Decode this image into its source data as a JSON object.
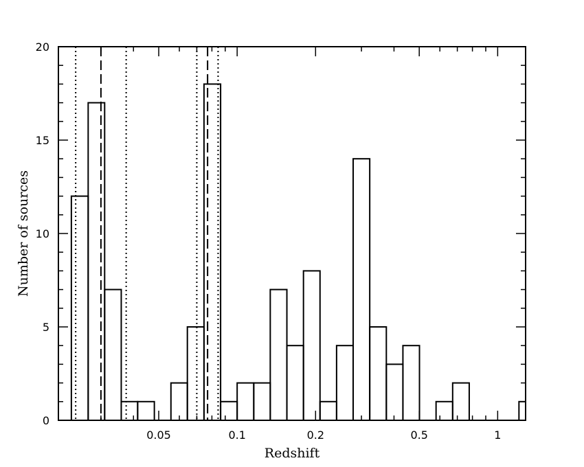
{
  "chart_data": {
    "type": "bar",
    "title": "",
    "xlabel": "Redshift",
    "ylabel": "Number of sources",
    "x_scale": "log",
    "xlim": [
      0.0206,
      1.28
    ],
    "ylim": [
      0,
      20
    ],
    "grid": false,
    "x_ticks": [
      {
        "value": 0.05,
        "label": "0.05"
      },
      {
        "value": 0.1,
        "label": "0.1"
      },
      {
        "value": 0.2,
        "label": "0.2"
      },
      {
        "value": 0.5,
        "label": "0.5"
      },
      {
        "value": 1,
        "label": "1"
      }
    ],
    "y_ticks": [
      {
        "value": 0,
        "label": "0"
      },
      {
        "value": 5,
        "label": "5"
      },
      {
        "value": 10,
        "label": "10"
      },
      {
        "value": 15,
        "label": "15"
      },
      {
        "value": 20,
        "label": "20"
      }
    ],
    "bins": [
      {
        "x0": 0.0231,
        "x1": 0.0268,
        "count": 12
      },
      {
        "x0": 0.0268,
        "x1": 0.031,
        "count": 17
      },
      {
        "x0": 0.031,
        "x1": 0.0359,
        "count": 7
      },
      {
        "x0": 0.0359,
        "x1": 0.0415,
        "count": 1
      },
      {
        "x0": 0.0415,
        "x1": 0.0481,
        "count": 1
      },
      {
        "x0": 0.0481,
        "x1": 0.0557,
        "count": 0
      },
      {
        "x0": 0.0557,
        "x1": 0.0644,
        "count": 2
      },
      {
        "x0": 0.0644,
        "x1": 0.0746,
        "count": 5
      },
      {
        "x0": 0.0746,
        "x1": 0.0864,
        "count": 18
      },
      {
        "x0": 0.0864,
        "x1": 0.1,
        "count": 1
      },
      {
        "x0": 0.1,
        "x1": 0.1158,
        "count": 2
      },
      {
        "x0": 0.1158,
        "x1": 0.134,
        "count": 2
      },
      {
        "x0": 0.134,
        "x1": 0.1552,
        "count": 7
      },
      {
        "x0": 0.1552,
        "x1": 0.1797,
        "count": 4
      },
      {
        "x0": 0.1797,
        "x1": 0.208,
        "count": 8
      },
      {
        "x0": 0.208,
        "x1": 0.2408,
        "count": 1
      },
      {
        "x0": 0.2408,
        "x1": 0.2788,
        "count": 4
      },
      {
        "x0": 0.2788,
        "x1": 0.3228,
        "count": 14
      },
      {
        "x0": 0.3228,
        "x1": 0.3738,
        "count": 5
      },
      {
        "x0": 0.3738,
        "x1": 0.4328,
        "count": 3
      },
      {
        "x0": 0.4328,
        "x1": 0.501,
        "count": 4
      },
      {
        "x0": 0.501,
        "x1": 0.5801,
        "count": 0
      },
      {
        "x0": 0.5801,
        "x1": 0.6717,
        "count": 1
      },
      {
        "x0": 0.6717,
        "x1": 0.7777,
        "count": 2
      },
      {
        "x0": 0.7777,
        "x1": 0.9004,
        "count": 0
      },
      {
        "x0": 0.9004,
        "x1": 1.0425,
        "count": 0
      },
      {
        "x0": 1.0425,
        "x1": 1.207,
        "count": 0
      },
      {
        "x0": 1.207,
        "x1": 1.28,
        "count": 1
      }
    ],
    "reference_lines": [
      {
        "x": 0.024,
        "style": "dotted"
      },
      {
        "x": 0.03,
        "style": "dashed"
      },
      {
        "x": 0.0375,
        "style": "dotted"
      },
      {
        "x": 0.07,
        "style": "dotted"
      },
      {
        "x": 0.077,
        "style": "dashed"
      },
      {
        "x": 0.0845,
        "style": "dotted"
      }
    ]
  }
}
